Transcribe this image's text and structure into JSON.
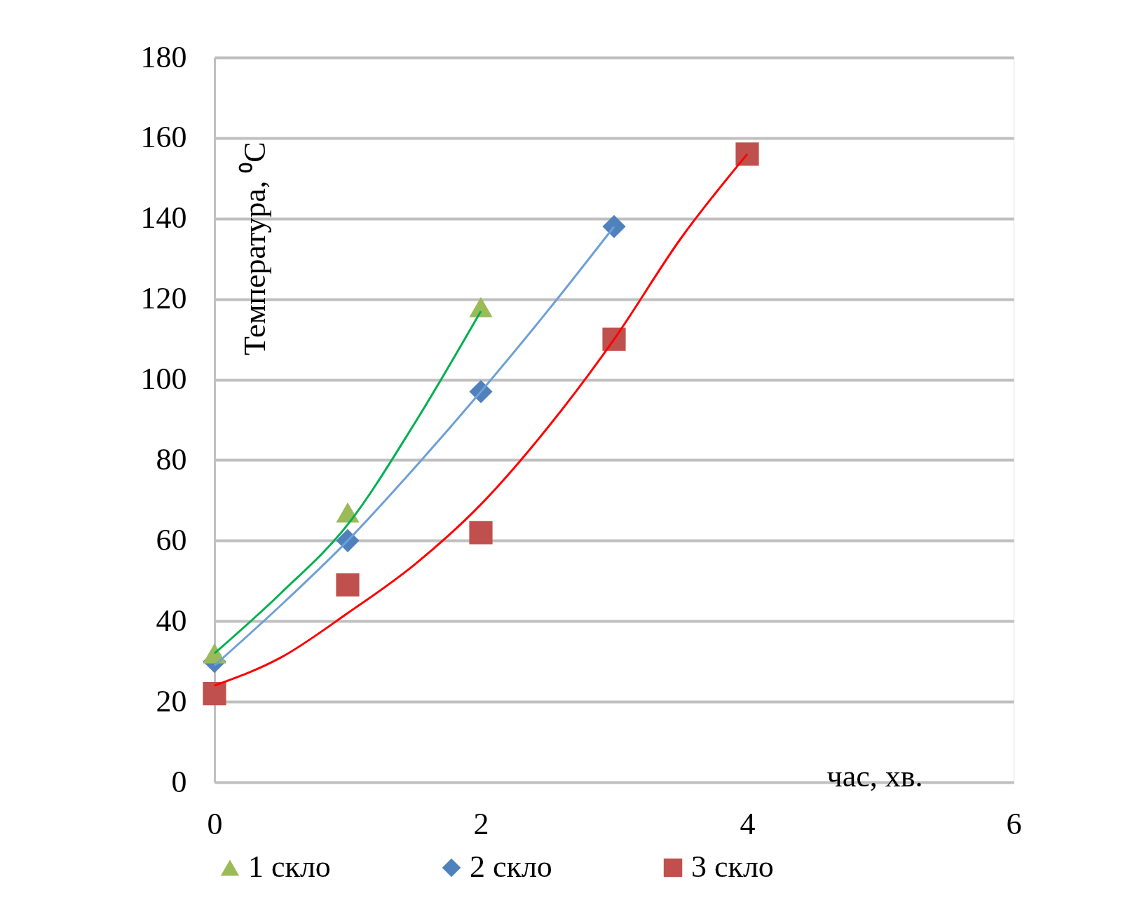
{
  "chart_data": {
    "type": "scatter",
    "xlabel": "час, хв.",
    "ylabel": "Температура, ⁰C",
    "xlim": [
      0,
      6
    ],
    "xticks": [
      0,
      2,
      4,
      6
    ],
    "ylim": [
      0,
      180
    ],
    "yticks": [
      0,
      20,
      40,
      60,
      80,
      100,
      120,
      140,
      160,
      180
    ],
    "grid": "y",
    "legend": "bottom",
    "series": [
      {
        "name": "1 скло",
        "marker": "triangle",
        "color": "#9bbb59",
        "x": [
          0,
          1,
          2
        ],
        "values": [
          32,
          67,
          118
        ]
      },
      {
        "name": "2 скло",
        "marker": "diamond",
        "color": "#4f81bd",
        "x": [
          0,
          1,
          2,
          3
        ],
        "values": [
          30,
          60,
          97,
          138
        ]
      },
      {
        "name": "3 скло",
        "marker": "square",
        "color": "#c0504d",
        "x": [
          0,
          1,
          2,
          3,
          4
        ],
        "values": [
          22,
          49,
          62,
          110,
          156
        ]
      },
      {
        "type": "line",
        "color": "#00b050",
        "x": [
          0,
          0.5,
          1,
          1.5,
          2
        ],
        "values": [
          32,
          47,
          64,
          89,
          117
        ]
      },
      {
        "type": "line",
        "color": "#6f9fd8",
        "x": [
          0,
          0.5,
          1,
          1.5,
          2,
          2.5,
          3
        ],
        "values": [
          29,
          44,
          60,
          78,
          97,
          117,
          138
        ]
      },
      {
        "type": "line",
        "color": "#ff0000",
        "x": [
          0,
          0.5,
          1,
          1.5,
          2,
          2.5,
          3,
          3.5,
          4
        ],
        "values": [
          24,
          31,
          42,
          54,
          69,
          88,
          110,
          135,
          156
        ]
      }
    ]
  }
}
